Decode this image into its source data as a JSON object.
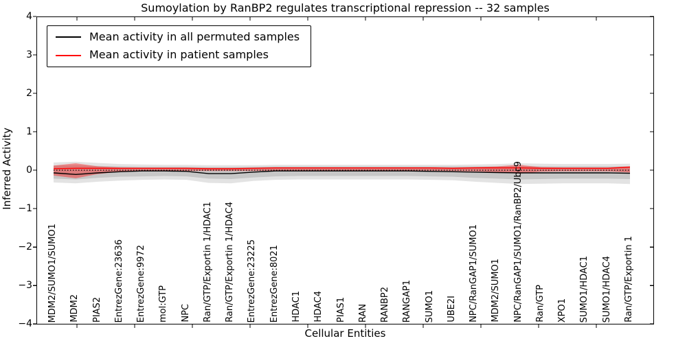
{
  "title": "Sumoylation by RanBP2 regulates transcriptional repression -- 32 samples",
  "axes": {
    "ylabel": "Inferred Activity",
    "xlabel": "Cellular Entities",
    "yticks": [
      4,
      3,
      2,
      1,
      0,
      -1,
      -2,
      -3,
      -4
    ],
    "ylim": [
      -4,
      4
    ]
  },
  "legend": {
    "items": [
      {
        "label": "Mean activity in all permuted samples",
        "color": "#000000"
      },
      {
        "label": "Mean activity in patient samples",
        "color": "#ff0000"
      }
    ]
  },
  "chart_data": {
    "type": "line",
    "title": "Sumoylation by RanBP2 regulates transcriptional repression -- 32 samples",
    "xlabel": "Cellular Entities",
    "ylabel": "Inferred Activity",
    "ylim": [
      -4,
      4
    ],
    "grid": false,
    "legend_position": "upper-left",
    "categories": [
      "MDM2/SUMO1/SUMO1",
      "MDM2",
      "PIAS2",
      "EntrezGene:23636",
      "EntrezGene:9972",
      "mol:GTP",
      "NPC",
      "Ran/GTP/Exportin 1/HDAC1",
      "Ran/GTP/Exportin 1/HDAC4",
      "EntrezGene:23225",
      "EntrezGene:8021",
      "HDAC1",
      "HDAC4",
      "PIAS1",
      "RAN",
      "RANBP2",
      "RANGAP1",
      "SUMO1",
      "UBE2I",
      "NPC/RanGAP1/SUMO1",
      "MDM2/SUMO1",
      "NPC/RanGAP1/SUMO1/RanBP2/Ubc9",
      "Ran/GTP",
      "XPO1",
      "SUMO1/HDAC1",
      "SUMO1/HDAC4",
      "Ran/GTP/Exportin 1"
    ],
    "series": [
      {
        "name": "Mean activity in all permuted samples",
        "color": "#000000",
        "style": "solid",
        "values": [
          -0.07,
          -0.11,
          -0.07,
          -0.04,
          -0.02,
          -0.02,
          -0.03,
          -0.09,
          -0.09,
          -0.05,
          -0.02,
          -0.02,
          -0.02,
          -0.02,
          -0.02,
          -0.02,
          -0.02,
          -0.03,
          -0.04,
          -0.05,
          -0.06,
          -0.07,
          -0.07,
          -0.07,
          -0.07,
          -0.07,
          -0.08
        ]
      },
      {
        "name": "Mean activity in patient samples",
        "color": "#ff0000",
        "style": "solid",
        "values": [
          0.04,
          0.05,
          0.05,
          0.05,
          0.05,
          0.05,
          0.05,
          0.04,
          0.04,
          0.05,
          0.06,
          0.06,
          0.06,
          0.06,
          0.06,
          0.06,
          0.06,
          0.06,
          0.05,
          0.06,
          0.06,
          0.06,
          0.05,
          0.05,
          0.05,
          0.05,
          0.08
        ]
      }
    ],
    "bands": [
      {
        "name": "permuted-range-outer",
        "color": "#000000",
        "opacity": 0.11,
        "upper": [
          0.2,
          0.22,
          0.19,
          0.16,
          0.15,
          0.14,
          0.14,
          0.13,
          0.13,
          0.13,
          0.14,
          0.14,
          0.14,
          0.14,
          0.14,
          0.14,
          0.14,
          0.14,
          0.14,
          0.15,
          0.16,
          0.18,
          0.17,
          0.16,
          0.16,
          0.16,
          0.17
        ],
        "lower": [
          -0.32,
          -0.34,
          -0.3,
          -0.27,
          -0.25,
          -0.24,
          -0.25,
          -0.33,
          -0.34,
          -0.28,
          -0.25,
          -0.24,
          -0.24,
          -0.24,
          -0.24,
          -0.24,
          -0.24,
          -0.25,
          -0.26,
          -0.3,
          -0.33,
          -0.36,
          -0.35,
          -0.34,
          -0.34,
          -0.34,
          -0.36
        ]
      },
      {
        "name": "permuted-range-inner",
        "color": "#000000",
        "opacity": 0.12,
        "upper": [
          0.12,
          0.13,
          0.11,
          0.1,
          0.09,
          0.09,
          0.09,
          0.08,
          0.08,
          0.09,
          0.1,
          0.1,
          0.1,
          0.1,
          0.1,
          0.1,
          0.1,
          0.1,
          0.1,
          0.1,
          0.1,
          0.11,
          0.1,
          0.1,
          0.1,
          0.1,
          0.1
        ],
        "lower": [
          -0.22,
          -0.24,
          -0.2,
          -0.17,
          -0.16,
          -0.15,
          -0.16,
          -0.22,
          -0.23,
          -0.19,
          -0.16,
          -0.15,
          -0.15,
          -0.15,
          -0.15,
          -0.15,
          -0.15,
          -0.16,
          -0.17,
          -0.2,
          -0.22,
          -0.24,
          -0.23,
          -0.22,
          -0.22,
          -0.22,
          -0.23
        ]
      },
      {
        "name": "patient-range",
        "color": "#ff0000",
        "opacity": 0.38,
        "upper": [
          0.12,
          0.18,
          0.1,
          0.07,
          0.065,
          0.065,
          0.065,
          0.06,
          0.06,
          0.065,
          0.07,
          0.07,
          0.07,
          0.07,
          0.07,
          0.07,
          0.07,
          0.07,
          0.07,
          0.08,
          0.1,
          0.14,
          0.08,
          0.07,
          0.07,
          0.07,
          0.1
        ],
        "lower": [
          -0.14,
          -0.21,
          -0.1,
          -0.04,
          -0.02,
          -0.02,
          -0.02,
          -0.02,
          -0.02,
          -0.02,
          -0.01,
          -0.01,
          -0.01,
          -0.01,
          -0.01,
          -0.01,
          -0.01,
          -0.01,
          -0.02,
          -0.03,
          -0.05,
          -0.09,
          -0.04,
          -0.03,
          -0.03,
          -0.03,
          -0.06
        ]
      }
    ],
    "reference_line": {
      "y": 0,
      "style": "dotted",
      "color": "#000000"
    }
  }
}
